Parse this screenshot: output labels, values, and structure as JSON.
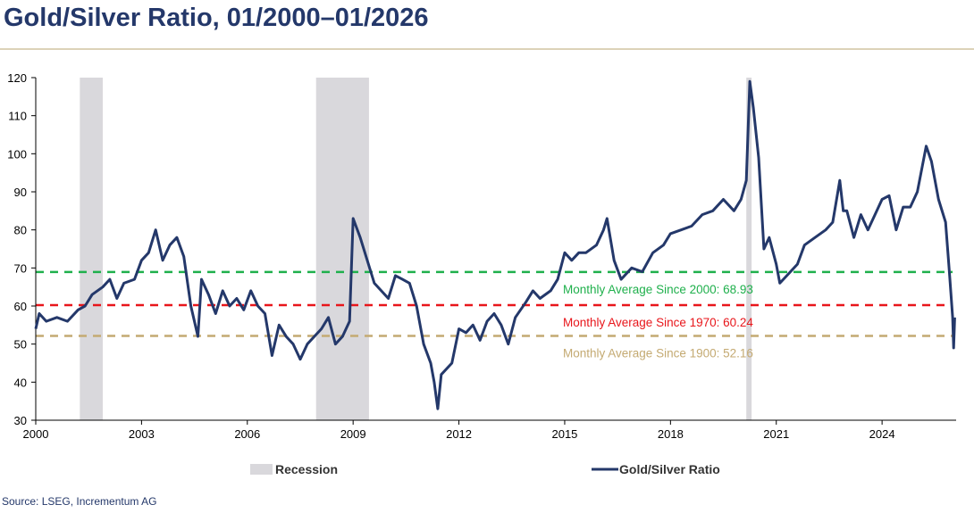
{
  "title": "Gold/Silver Ratio, 01/2000–01/2026",
  "source": "Source: LSEG, Incrementum AG",
  "colors": {
    "line": "#24386a",
    "recession": "#d9d8dc",
    "avg2000": "#1fb04c",
    "avg1970": "#e8161b",
    "avg1900": "#c4aa72"
  },
  "chart_data": {
    "type": "line",
    "title": "Gold/Silver Ratio, 01/2000–01/2026",
    "xlabel": "",
    "ylabel": "",
    "xlim": [
      2000,
      2026.1
    ],
    "ylim": [
      30,
      120
    ],
    "yticks": [
      "30",
      "40",
      "50",
      "60",
      "70",
      "80",
      "90",
      "100",
      "110",
      "120"
    ],
    "xticks": [
      "2000",
      "2003",
      "2006",
      "2009",
      "2012",
      "2015",
      "2018",
      "2021",
      "2024"
    ],
    "legend": {
      "placement": "bottom",
      "recession": "Recession",
      "series": "Gold/Silver Ratio"
    },
    "recessions": [
      [
        2001.25,
        2001.9
      ],
      [
        2007.95,
        2009.45
      ],
      [
        2020.15,
        2020.3
      ]
    ],
    "averages": [
      {
        "label": "Monthly Average Since 2000: 68.93",
        "value": 68.93,
        "color": "#1fb04c"
      },
      {
        "label": "Monthly Average Since 1970: 60.24",
        "value": 60.24,
        "color": "#e8161b"
      },
      {
        "label": "Monthly Average Since 1900: 52.16",
        "value": 52.16,
        "color": "#c4aa72"
      }
    ],
    "series": [
      {
        "name": "Gold/Silver Ratio",
        "points": [
          [
            2000.0,
            54
          ],
          [
            2000.1,
            58
          ],
          [
            2000.3,
            56
          ],
          [
            2000.6,
            57
          ],
          [
            2000.9,
            56
          ],
          [
            2001.2,
            59
          ],
          [
            2001.4,
            60
          ],
          [
            2001.6,
            63
          ],
          [
            2001.9,
            65
          ],
          [
            2002.1,
            67
          ],
          [
            2002.3,
            62
          ],
          [
            2002.5,
            66
          ],
          [
            2002.8,
            67
          ],
          [
            2003.0,
            72
          ],
          [
            2003.2,
            74
          ],
          [
            2003.4,
            80
          ],
          [
            2003.6,
            72
          ],
          [
            2003.8,
            76
          ],
          [
            2004.0,
            78
          ],
          [
            2004.2,
            73
          ],
          [
            2004.4,
            60
          ],
          [
            2004.6,
            52
          ],
          [
            2004.7,
            67
          ],
          [
            2004.9,
            63
          ],
          [
            2005.1,
            58
          ],
          [
            2005.3,
            64
          ],
          [
            2005.5,
            60
          ],
          [
            2005.7,
            62
          ],
          [
            2005.9,
            59
          ],
          [
            2006.1,
            64
          ],
          [
            2006.3,
            60
          ],
          [
            2006.5,
            58
          ],
          [
            2006.7,
            47
          ],
          [
            2006.9,
            55
          ],
          [
            2007.1,
            52
          ],
          [
            2007.3,
            50
          ],
          [
            2007.5,
            46
          ],
          [
            2007.7,
            50
          ],
          [
            2007.9,
            52
          ],
          [
            2008.1,
            54
          ],
          [
            2008.3,
            57
          ],
          [
            2008.5,
            50
          ],
          [
            2008.7,
            52
          ],
          [
            2008.9,
            56
          ],
          [
            2009.0,
            83
          ],
          [
            2009.2,
            78
          ],
          [
            2009.4,
            72
          ],
          [
            2009.6,
            66
          ],
          [
            2009.8,
            64
          ],
          [
            2010.0,
            62
          ],
          [
            2010.2,
            68
          ],
          [
            2010.4,
            67
          ],
          [
            2010.6,
            66
          ],
          [
            2010.8,
            60
          ],
          [
            2011.0,
            50
          ],
          [
            2011.2,
            45
          ],
          [
            2011.3,
            40
          ],
          [
            2011.4,
            33
          ],
          [
            2011.5,
            42
          ],
          [
            2011.8,
            45
          ],
          [
            2012.0,
            54
          ],
          [
            2012.2,
            53
          ],
          [
            2012.4,
            55
          ],
          [
            2012.6,
            51
          ],
          [
            2012.8,
            56
          ],
          [
            2013.0,
            58
          ],
          [
            2013.2,
            55
          ],
          [
            2013.4,
            50
          ],
          [
            2013.6,
            57
          ],
          [
            2013.9,
            61
          ],
          [
            2014.1,
            64
          ],
          [
            2014.3,
            62
          ],
          [
            2014.6,
            64
          ],
          [
            2014.8,
            67
          ],
          [
            2015.0,
            74
          ],
          [
            2015.2,
            72
          ],
          [
            2015.4,
            74
          ],
          [
            2015.6,
            74
          ],
          [
            2015.9,
            76
          ],
          [
            2016.1,
            80
          ],
          [
            2016.2,
            83
          ],
          [
            2016.4,
            72
          ],
          [
            2016.6,
            67
          ],
          [
            2016.9,
            70
          ],
          [
            2017.2,
            69
          ],
          [
            2017.5,
            74
          ],
          [
            2017.8,
            76
          ],
          [
            2018.0,
            79
          ],
          [
            2018.3,
            80
          ],
          [
            2018.6,
            81
          ],
          [
            2018.9,
            84
          ],
          [
            2019.2,
            85
          ],
          [
            2019.5,
            88
          ],
          [
            2019.8,
            85
          ],
          [
            2020.0,
            88
          ],
          [
            2020.15,
            93
          ],
          [
            2020.25,
            119
          ],
          [
            2020.35,
            112
          ],
          [
            2020.5,
            99
          ],
          [
            2020.65,
            75
          ],
          [
            2020.8,
            78
          ],
          [
            2021.0,
            71
          ],
          [
            2021.1,
            66
          ],
          [
            2021.3,
            68
          ],
          [
            2021.6,
            71
          ],
          [
            2021.8,
            76
          ],
          [
            2022.1,
            78
          ],
          [
            2022.4,
            80
          ],
          [
            2022.6,
            82
          ],
          [
            2022.8,
            93
          ],
          [
            2022.9,
            85
          ],
          [
            2023.0,
            85
          ],
          [
            2023.2,
            78
          ],
          [
            2023.4,
            84
          ],
          [
            2023.6,
            80
          ],
          [
            2023.8,
            84
          ],
          [
            2024.0,
            88
          ],
          [
            2024.2,
            89
          ],
          [
            2024.4,
            80
          ],
          [
            2024.6,
            86
          ],
          [
            2024.8,
            86
          ],
          [
            2025.0,
            90
          ],
          [
            2025.25,
            102
          ],
          [
            2025.4,
            98
          ],
          [
            2025.6,
            88
          ],
          [
            2025.8,
            82
          ],
          [
            2025.9,
            70
          ],
          [
            2026.0,
            57
          ],
          [
            2026.03,
            49
          ],
          [
            2026.06,
            57
          ]
        ]
      }
    ]
  }
}
